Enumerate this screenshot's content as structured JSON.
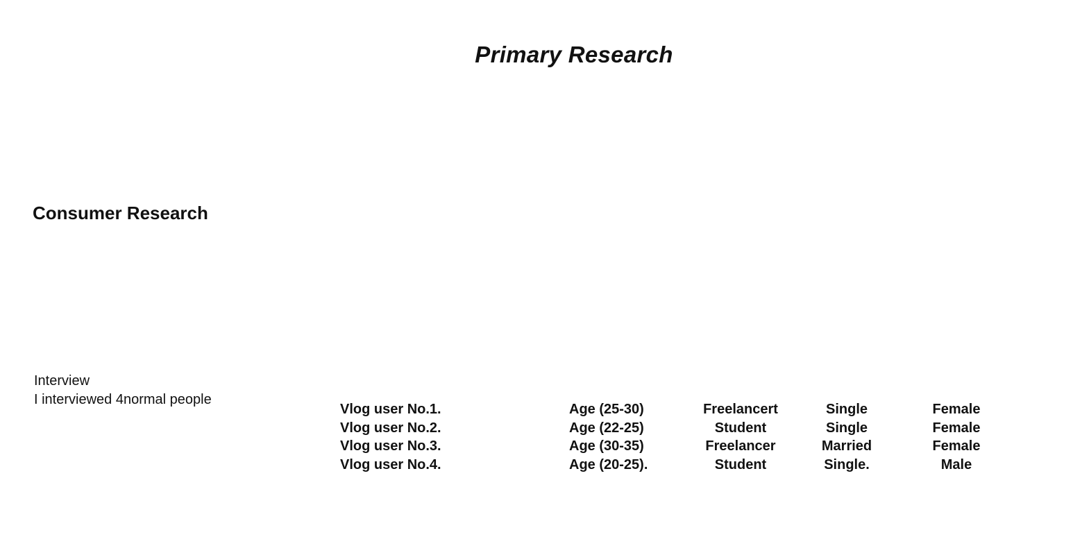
{
  "page": {
    "title": "Primary Research",
    "section_heading": "Consumer Research",
    "interview": {
      "label": "Interview",
      "description": "I interviewed 4normal people"
    },
    "table": {
      "rows": [
        [
          "Vlog user No.1.",
          "Age (25-30)",
          "Freelancert",
          "Single",
          "Female"
        ],
        [
          "Vlog user No.2.",
          "Age (22-25)",
          "Student",
          "Single",
          "Female"
        ],
        [
          "Vlog user No.3.",
          "Age (30-35)",
          "Freelancer",
          "Married",
          "Female"
        ],
        [
          "Vlog user No.4.",
          "Age (20-25).",
          "Student",
          "Single.",
          "Male"
        ]
      ]
    },
    "colors": {
      "background": "#ffffff",
      "text": "#111111"
    }
  }
}
